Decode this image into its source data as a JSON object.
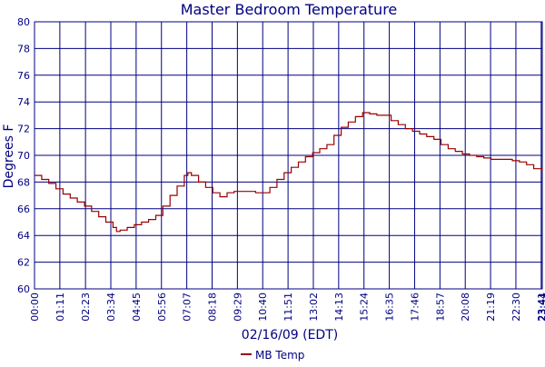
{
  "chart_data": {
    "type": "line",
    "title": "Master Bedroom Temperature",
    "xlabel": "02/16/09 (EDT)",
    "ylabel": "Degrees F",
    "ylim": [
      60,
      80
    ],
    "grid": true,
    "legend_position": "bottom",
    "colors": {
      "title": "#000080",
      "axes_text": "#000080",
      "grid": "#000080",
      "series": "#990000"
    },
    "x_ticks": [
      "00:00",
      "01:11",
      "02:23",
      "03:34",
      "04:45",
      "05:56",
      "07:07",
      "08:18",
      "09:29",
      "10:40",
      "11:51",
      "13:02",
      "14:13",
      "15:24",
      "16:35",
      "17:46",
      "18:57",
      "20:08",
      "21:19",
      "22:30",
      "23:41",
      "23:44"
    ],
    "y_ticks": [
      "60",
      "62",
      "64",
      "66",
      "68",
      "70",
      "72",
      "74",
      "76",
      "78",
      "80"
    ],
    "series": [
      {
        "name": "MB Temp",
        "x": [
          "00:00",
          "00:20",
          "00:40",
          "01:00",
          "01:20",
          "01:40",
          "02:00",
          "02:20",
          "02:40",
          "03:00",
          "03:20",
          "03:40",
          "03:50",
          "04:00",
          "04:20",
          "04:40",
          "05:00",
          "05:20",
          "05:40",
          "06:00",
          "06:20",
          "06:40",
          "07:00",
          "07:10",
          "07:20",
          "07:40",
          "08:00",
          "08:20",
          "08:40",
          "09:00",
          "09:20",
          "09:40",
          "10:00",
          "10:20",
          "10:40",
          "11:00",
          "11:20",
          "11:40",
          "12:00",
          "12:20",
          "12:40",
          "13:00",
          "13:20",
          "13:40",
          "14:00",
          "14:20",
          "14:40",
          "15:00",
          "15:20",
          "15:40",
          "16:00",
          "16:20",
          "16:40",
          "17:00",
          "17:20",
          "17:40",
          "18:00",
          "18:20",
          "18:40",
          "19:00",
          "19:20",
          "19:40",
          "20:00",
          "20:20",
          "20:40",
          "21:00",
          "21:20",
          "21:40",
          "22:00",
          "22:20",
          "22:40",
          "23:00",
          "23:20",
          "23:44"
        ],
        "values": [
          68.5,
          68.2,
          67.9,
          67.5,
          67.1,
          66.8,
          66.5,
          66.2,
          65.8,
          65.4,
          65.0,
          64.6,
          64.3,
          64.4,
          64.6,
          64.8,
          65.0,
          65.2,
          65.5,
          66.2,
          67.0,
          67.7,
          68.5,
          68.7,
          68.5,
          68.0,
          67.6,
          67.2,
          66.9,
          67.2,
          67.3,
          67.3,
          67.3,
          67.2,
          67.2,
          67.6,
          68.2,
          68.7,
          69.1,
          69.5,
          69.9,
          70.2,
          70.5,
          70.8,
          71.5,
          72.1,
          72.5,
          72.9,
          73.2,
          73.1,
          73.0,
          73.0,
          72.6,
          72.3,
          72.0,
          71.8,
          71.6,
          71.4,
          71.2,
          70.8,
          70.5,
          70.3,
          70.1,
          70.0,
          69.9,
          69.8,
          69.7,
          69.7,
          69.7,
          69.6,
          69.5,
          69.3,
          69.0,
          68.8
        ]
      }
    ]
  }
}
